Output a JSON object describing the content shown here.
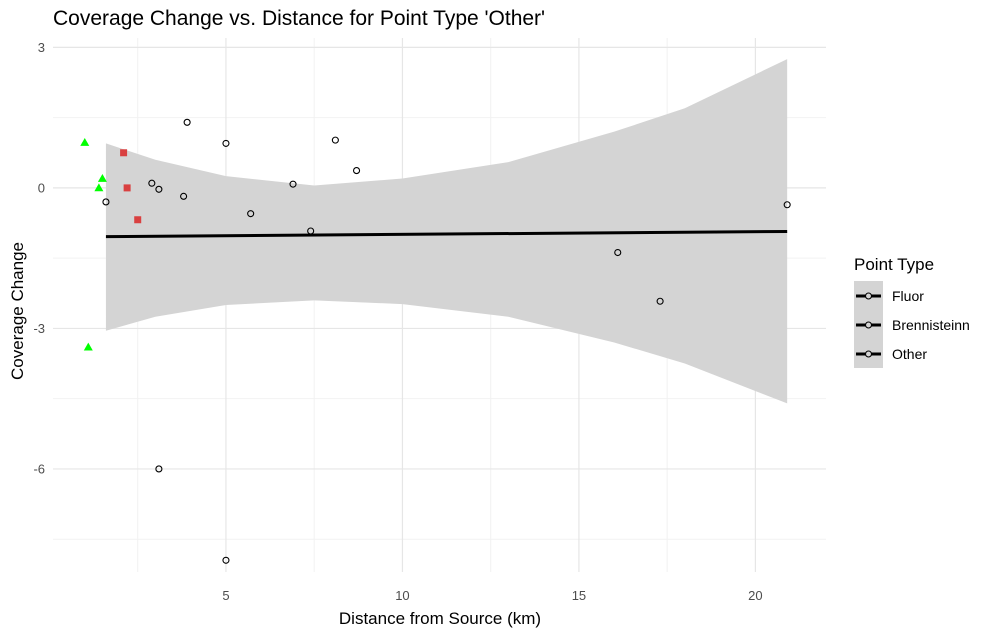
{
  "chart_data": {
    "type": "scatter",
    "title": "Coverage Change vs. Distance for Point Type 'Other'",
    "xlabel": "Distance from Source (km)",
    "ylabel": "Coverage Change",
    "xlim": [
      0.1,
      22
    ],
    "ylim": [
      -8.2,
      3.2
    ],
    "x_ticks": [
      5,
      10,
      15,
      20
    ],
    "y_ticks": [
      -6,
      -3,
      0,
      3
    ],
    "grid": true,
    "legend": {
      "title": "Point Type",
      "position": "right",
      "entries": [
        "Fluor",
        "Brennisteinn",
        "Other"
      ]
    },
    "series": [
      {
        "name": "Fluor",
        "marker": "triangle",
        "color": "#00ff00",
        "points": [
          {
            "x": 1.0,
            "y": 0.97
          },
          {
            "x": 1.5,
            "y": 0.2
          },
          {
            "x": 1.4,
            "y": 0.0
          },
          {
            "x": 1.1,
            "y": -3.4
          }
        ]
      },
      {
        "name": "Brennisteinn",
        "marker": "square",
        "color": "#d94040",
        "points": [
          {
            "x": 2.1,
            "y": 0.75
          },
          {
            "x": 2.2,
            "y": 0.0
          },
          {
            "x": 2.5,
            "y": -0.68
          }
        ]
      },
      {
        "name": "Other",
        "marker": "circle-open",
        "color": "#000000",
        "points": [
          {
            "x": 1.6,
            "y": -0.3
          },
          {
            "x": 2.9,
            "y": 0.1
          },
          {
            "x": 3.1,
            "y": -0.03
          },
          {
            "x": 3.8,
            "y": -0.18
          },
          {
            "x": 3.9,
            "y": 1.4
          },
          {
            "x": 5.0,
            "y": 0.95
          },
          {
            "x": 5.7,
            "y": -0.55
          },
          {
            "x": 6.9,
            "y": 0.08
          },
          {
            "x": 7.4,
            "y": -0.92
          },
          {
            "x": 8.1,
            "y": 1.02
          },
          {
            "x": 8.7,
            "y": 0.37
          },
          {
            "x": 3.1,
            "y": -6.0
          },
          {
            "x": 5.0,
            "y": -7.95
          },
          {
            "x": 16.1,
            "y": -1.38
          },
          {
            "x": 17.3,
            "y": -2.42
          },
          {
            "x": 20.9,
            "y": -0.36
          }
        ]
      }
    ],
    "trend_line": {
      "x_start": 1.6,
      "y_start": -1.04,
      "x_end": 20.9,
      "y_end": -0.93,
      "color": "#000000"
    },
    "confidence_band": {
      "color": "#d4d4d4",
      "x": [
        1.6,
        3,
        5,
        7.5,
        10,
        13,
        16,
        18,
        20.9
      ],
      "upper": [
        0.95,
        0.6,
        0.25,
        0.05,
        0.2,
        0.55,
        1.2,
        1.7,
        2.75
      ],
      "lower": [
        -3.05,
        -2.75,
        -2.5,
        -2.4,
        -2.48,
        -2.75,
        -3.3,
        -3.75,
        -4.6
      ]
    }
  }
}
